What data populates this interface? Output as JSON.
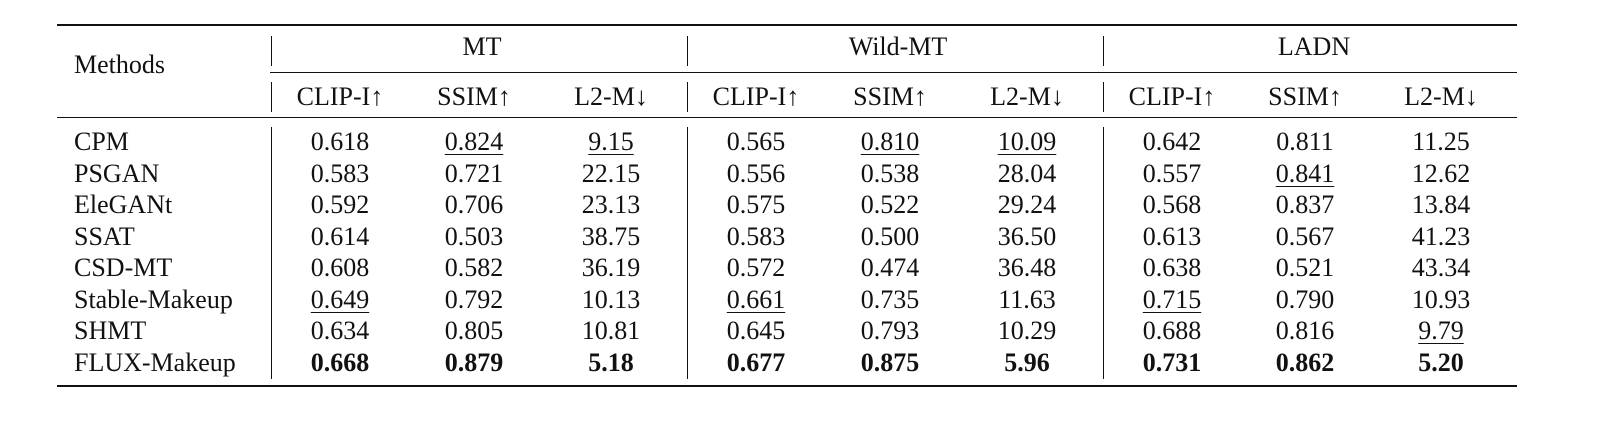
{
  "table": {
    "corner": "Methods",
    "groups": [
      "MT",
      "Wild-MT",
      "LADN"
    ],
    "metrics": [
      "CLIP-I↑",
      "SSIM↑",
      "L2-M↓",
      "CLIP-I↑",
      "SSIM↑",
      "L2-M↓",
      "CLIP-I↑",
      "SSIM↑",
      "L2-M↓"
    ],
    "rows": [
      {
        "method": "CPM",
        "values": [
          "0.618",
          "0.824",
          "9.15",
          "0.565",
          "0.810",
          "10.09",
          "0.642",
          "0.811",
          "11.25"
        ]
      },
      {
        "method": "PSGAN",
        "values": [
          "0.583",
          "0.721",
          "22.15",
          "0.556",
          "0.538",
          "28.04",
          "0.557",
          "0.841",
          "12.62"
        ]
      },
      {
        "method": "EleGANt",
        "values": [
          "0.592",
          "0.706",
          "23.13",
          "0.575",
          "0.522",
          "29.24",
          "0.568",
          "0.837",
          "13.84"
        ]
      },
      {
        "method": "SSAT",
        "values": [
          "0.614",
          "0.503",
          "38.75",
          "0.583",
          "0.500",
          "36.50",
          "0.613",
          "0.567",
          "41.23"
        ]
      },
      {
        "method": "CSD-MT",
        "values": [
          "0.608",
          "0.582",
          "36.19",
          "0.572",
          "0.474",
          "36.48",
          "0.638",
          "0.521",
          "43.34"
        ]
      },
      {
        "method": "Stable-Makeup",
        "values": [
          "0.649",
          "0.792",
          "10.13",
          "0.661",
          "0.735",
          "11.63",
          "0.715",
          "0.790",
          "10.93"
        ]
      },
      {
        "method": "SHMT",
        "values": [
          "0.634",
          "0.805",
          "10.81",
          "0.645",
          "0.793",
          "10.29",
          "0.688",
          "0.816",
          "9.79"
        ]
      },
      {
        "method": "FLUX-Makeup",
        "values": [
          "0.668",
          "0.879",
          "5.18",
          "0.677",
          "0.875",
          "5.96",
          "0.731",
          "0.862",
          "5.20"
        ]
      }
    ]
  }
}
